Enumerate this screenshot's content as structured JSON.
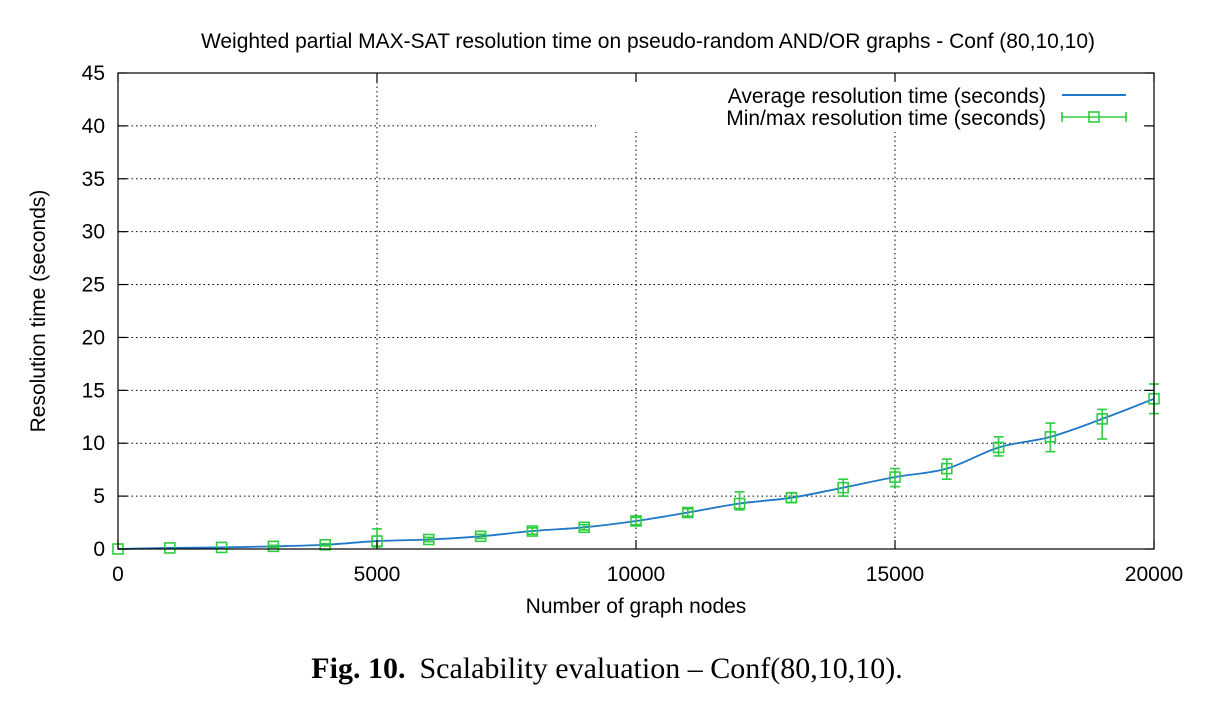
{
  "chart_data": {
    "type": "line",
    "title": "Weighted partial MAX-SAT resolution time on pseudo-random AND/OR graphs - Conf (80,10,10)",
    "xlabel": "Number of graph nodes",
    "ylabel": "Resolution time (seconds)",
    "xlim": [
      0,
      20000
    ],
    "ylim": [
      0,
      45
    ],
    "x_ticks": [
      0,
      5000,
      10000,
      15000,
      20000
    ],
    "y_ticks": [
      0,
      5,
      10,
      15,
      20,
      25,
      30,
      35,
      40,
      45
    ],
    "grid": true,
    "legend_position": "top-right",
    "series": [
      {
        "name": "Average resolution time (seconds)",
        "style": "line",
        "color": "#1f78c8",
        "x": [
          0,
          1000,
          2000,
          3000,
          4000,
          5000,
          6000,
          7000,
          8000,
          9000,
          10000,
          11000,
          12000,
          13000,
          14000,
          15000,
          16000,
          17000,
          18000,
          19000,
          20000
        ],
        "y": [
          0.0,
          0.1,
          0.15,
          0.25,
          0.4,
          0.75,
          0.9,
          1.2,
          1.7,
          2.05,
          2.65,
          3.45,
          4.3,
          4.85,
          5.8,
          6.8,
          7.6,
          9.6,
          10.6,
          12.3,
          14.2
        ]
      },
      {
        "name": "Min/max resolution time (seconds)",
        "style": "errorbars",
        "color": "#2ecc40",
        "x": [
          0,
          1000,
          2000,
          3000,
          4000,
          5000,
          6000,
          7000,
          8000,
          9000,
          10000,
          11000,
          12000,
          13000,
          14000,
          15000,
          16000,
          17000,
          18000,
          19000,
          20000
        ],
        "y": [
          0.0,
          0.1,
          0.15,
          0.25,
          0.4,
          0.75,
          0.9,
          1.2,
          1.7,
          2.05,
          2.65,
          3.45,
          4.3,
          4.85,
          5.8,
          6.8,
          7.6,
          9.6,
          10.6,
          12.3,
          14.2
        ],
        "ymin": [
          0.0,
          0.05,
          0.1,
          0.15,
          0.3,
          0.2,
          0.7,
          1.0,
          1.4,
          1.8,
          2.3,
          3.1,
          3.7,
          4.4,
          5.0,
          5.9,
          6.6,
          8.8,
          9.2,
          10.4,
          12.8
        ],
        "ymax": [
          0.05,
          0.15,
          0.2,
          0.35,
          0.5,
          1.9,
          1.1,
          1.4,
          2.0,
          2.3,
          3.0,
          3.8,
          5.4,
          5.3,
          6.6,
          7.6,
          8.5,
          10.6,
          11.9,
          13.2,
          15.6
        ]
      }
    ]
  },
  "caption": {
    "label": "Fig. 10.",
    "text": "Scalability evaluation – Conf(80,10,10)."
  }
}
